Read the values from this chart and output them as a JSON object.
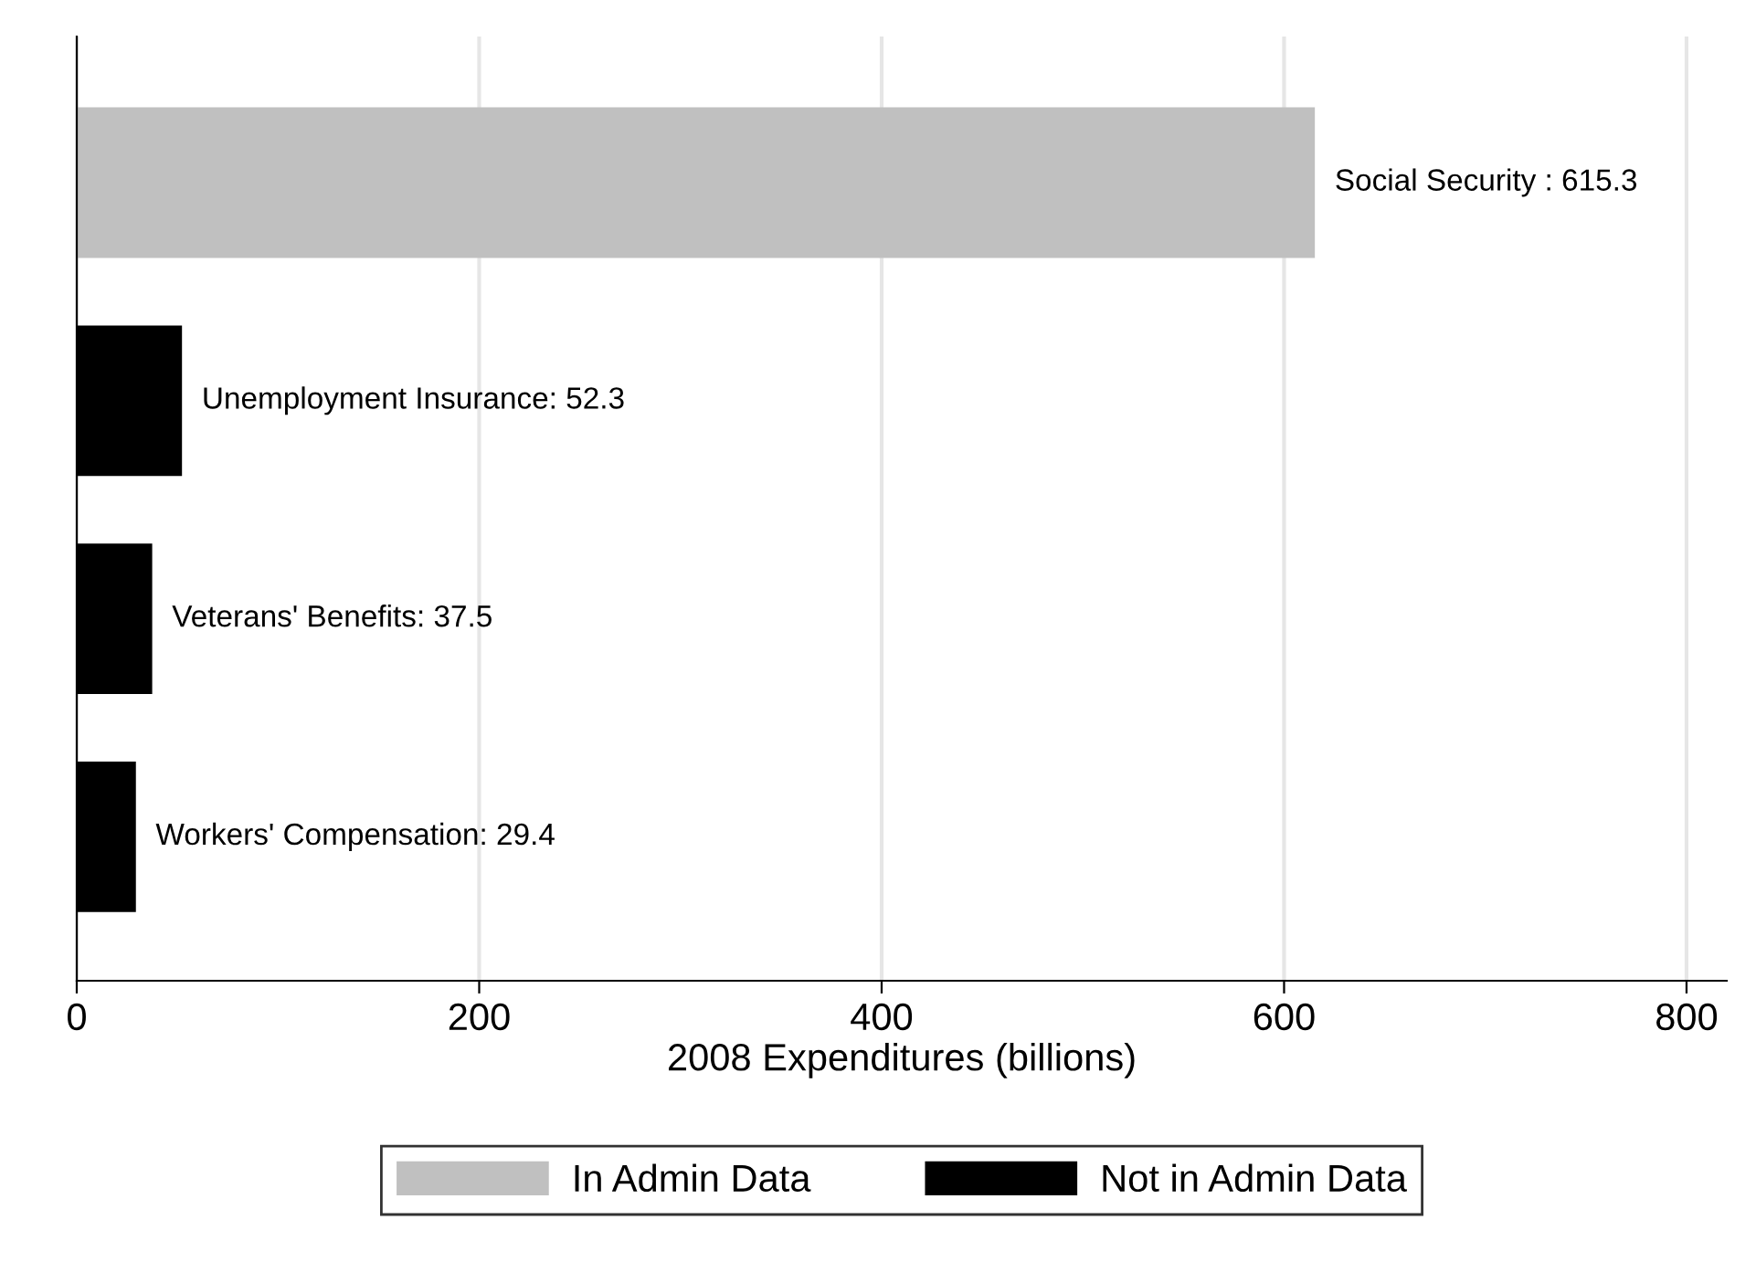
{
  "chart_data": {
    "type": "bar",
    "orientation": "horizontal",
    "categories": [
      null,
      null,
      null,
      null
    ],
    "series": [
      {
        "name": "In Admin Data",
        "color": "#c0c0c0",
        "values": [
          615.3,
          null,
          null,
          null
        ],
        "value_labels": [
          "Social Security : 615.3",
          null,
          null,
          null
        ]
      },
      {
        "name": "Not in Admin Data",
        "color": "#000000",
        "values": [
          null,
          52.3,
          37.5,
          29.4
        ],
        "value_labels": [
          null,
          "Unemployment Insurance: 52.3",
          "Veterans' Benefits: 37.5",
          "Workers' Compensation: 29.4"
        ]
      }
    ],
    "xlabel": "2008 Expenditures (billions)",
    "xlim": [
      0,
      820
    ],
    "xticks": [
      0,
      200,
      400,
      600,
      800
    ],
    "grid": "x",
    "legend": "bottom",
    "tick_labels": "x"
  }
}
